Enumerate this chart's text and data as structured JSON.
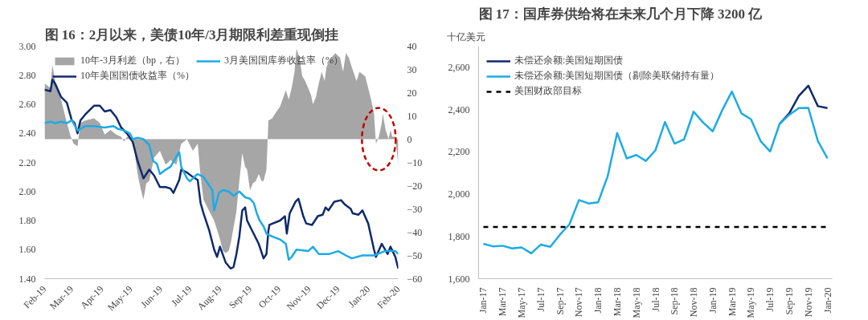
{
  "chart_data": [
    {
      "type": "line",
      "title": "图 16：2月以来，美债10年/3月期限利差重现倒挂",
      "legend": "top left",
      "xlim": [
        "2019-02-01",
        "2020-02-01"
      ],
      "xticks": [
        {
          "value": "2019-02-01",
          "label": "Feb-19"
        },
        {
          "value": "2019-03-01",
          "label": "Mar-19"
        },
        {
          "value": "2019-04-01",
          "label": "Apr-19"
        },
        {
          "value": "2019-05-01",
          "label": "May-19"
        },
        {
          "value": "2019-06-01",
          "label": "Jun-19"
        },
        {
          "value": "2019-07-01",
          "label": "Jul-19"
        },
        {
          "value": "2019-08-01",
          "label": "Aug-19"
        },
        {
          "value": "2019-09-01",
          "label": "Sep-19"
        },
        {
          "value": "2019-10-01",
          "label": "Oct-19"
        },
        {
          "value": "2019-11-01",
          "label": "Nov-19"
        },
        {
          "value": "2019-12-01",
          "label": "Dec-19"
        },
        {
          "value": "2020-01-01",
          "label": "Jan-20"
        },
        {
          "value": "2020-02-01",
          "label": "Feb-20"
        }
      ],
      "ylim": [
        1.4,
        3.0
      ],
      "yticks": [
        {
          "value": 1.4,
          "label": "1.40"
        },
        {
          "value": 1.6,
          "label": "1.60"
        },
        {
          "value": 1.8,
          "label": "1.80"
        },
        {
          "value": 2.0,
          "label": "2.00"
        },
        {
          "value": 2.2,
          "label": "2.20"
        },
        {
          "value": 2.4,
          "label": "2.40"
        },
        {
          "value": 2.6,
          "label": "2.60"
        },
        {
          "value": 2.8,
          "label": "2.80"
        },
        {
          "value": 3.0,
          "label": "3.00"
        }
      ],
      "y2lim": [
        -60,
        40
      ],
      "y2ticks": [
        -60,
        -50,
        -40,
        -30,
        -20,
        -10,
        0,
        10,
        20,
        30,
        40
      ],
      "series": [
        {
          "name": "10年-3月利差（bp，右）",
          "type": "area",
          "axis": "y2",
          "color": "#a6a6a6",
          "x": [
            "2019-02-01",
            "2019-02-07",
            "2019-02-09",
            "2019-02-12",
            "2019-02-18",
            "2019-02-24",
            "2019-02-28",
            "2019-03-03",
            "2019-03-07",
            "2019-03-10",
            "2019-03-15",
            "2019-03-24",
            "2019-03-30",
            "2019-04-04",
            "2019-04-10",
            "2019-04-16",
            "2019-04-21",
            "2019-04-24",
            "2019-04-27",
            "2019-05-03",
            "2019-05-08",
            "2019-05-11",
            "2019-05-14",
            "2019-05-17",
            "2019-05-20",
            "2019-05-25",
            "2019-05-31",
            "2019-06-03",
            "2019-06-06",
            "2019-06-11",
            "2019-06-17",
            "2019-06-22",
            "2019-06-28",
            "2019-07-04",
            "2019-07-09",
            "2019-07-12",
            "2019-07-15",
            "2019-07-21",
            "2019-07-26",
            "2019-08-01",
            "2019-08-04",
            "2019-08-07",
            "2019-08-10",
            "2019-08-12",
            "2019-08-18",
            "2019-08-21",
            "2019-08-24",
            "2019-08-27",
            "2019-08-29",
            "2019-09-01",
            "2019-09-04",
            "2019-09-07",
            "2019-09-10",
            "2019-09-13",
            "2019-09-15",
            "2019-09-18",
            "2019-09-20",
            "2019-09-24",
            "2019-09-27",
            "2019-10-02",
            "2019-10-08",
            "2019-10-11",
            "2019-10-14",
            "2019-10-17",
            "2019-10-19",
            "2019-10-22",
            "2019-10-25",
            "2019-10-28",
            "2019-11-03",
            "2019-11-05",
            "2019-11-08",
            "2019-11-11",
            "2019-11-14",
            "2019-11-17",
            "2019-11-19",
            "2019-11-22",
            "2019-11-28",
            "2019-12-03",
            "2019-12-06",
            "2019-12-09",
            "2019-12-12",
            "2019-12-15",
            "2019-12-20",
            "2019-12-23",
            "2019-12-29",
            "2020-01-01",
            "2020-01-04",
            "2020-01-07",
            "2020-01-09",
            "2020-01-12",
            "2020-01-15",
            "2020-01-16",
            "2020-01-19",
            "2020-01-22",
            "2020-01-24",
            "2020-01-26",
            "2020-01-29",
            "2020-02-01"
          ],
          "values": [
            24,
            22,
            32,
            25,
            17,
            7,
            1,
            -2,
            -3,
            7,
            8,
            9,
            7,
            2,
            4,
            2,
            1,
            -1,
            1,
            0,
            -15,
            -21,
            -26,
            -19,
            -18,
            -8,
            -5,
            -8,
            -11,
            -9,
            -11,
            -2,
            0,
            -5,
            -2,
            -16,
            -26,
            -31,
            -35,
            -43,
            -48,
            -49,
            -48,
            -45,
            -31,
            -18,
            -6,
            -12,
            -13,
            -22,
            -19,
            -18,
            -15,
            -18,
            -18,
            -13,
            8,
            9,
            11,
            14,
            21,
            17,
            22,
            29,
            39,
            35,
            27,
            25,
            19,
            15,
            18,
            24,
            29,
            25,
            31,
            34,
            37,
            35,
            29,
            37,
            35,
            31,
            25,
            29,
            27,
            22,
            17,
            11,
            -2,
            1,
            7,
            11,
            4,
            0,
            4,
            1,
            1,
            -11
          ]
        },
        {
          "name": "10年美国国债收益率（%）",
          "color": "#0f2a6b",
          "x": [
            "2019-02-01",
            "2019-02-07",
            "2019-02-09",
            "2019-02-12",
            "2019-02-18",
            "2019-02-24",
            "2019-03-01",
            "2019-03-04",
            "2019-03-07",
            "2019-03-10",
            "2019-03-15",
            "2019-03-24",
            "2019-03-30",
            "2019-04-04",
            "2019-04-10",
            "2019-04-16",
            "2019-04-21",
            "2019-04-27",
            "2019-05-03",
            "2019-05-08",
            "2019-05-14",
            "2019-05-20",
            "2019-05-25",
            "2019-05-31",
            "2019-06-06",
            "2019-06-11",
            "2019-06-14",
            "2019-06-20",
            "2019-06-22",
            "2019-06-28",
            "2019-07-04",
            "2019-07-09",
            "2019-07-12",
            "2019-07-15",
            "2019-07-21",
            "2019-07-26",
            "2019-07-29",
            "2019-08-01",
            "2019-08-07",
            "2019-08-12",
            "2019-08-15",
            "2019-08-18",
            "2019-08-21",
            "2019-08-24",
            "2019-08-27",
            "2019-08-29",
            "2019-09-04",
            "2019-09-10",
            "2019-09-15",
            "2019-09-18",
            "2019-09-20",
            "2019-09-21",
            "2019-10-02",
            "2019-10-07",
            "2019-10-09",
            "2019-10-12",
            "2019-10-18",
            "2019-10-21",
            "2019-10-26",
            "2019-10-29",
            "2019-11-04",
            "2019-11-10",
            "2019-11-15",
            "2019-11-18",
            "2019-11-21",
            "2019-11-27",
            "2019-12-04",
            "2019-12-08",
            "2019-12-14",
            "2019-12-16",
            "2019-12-22",
            "2019-12-26",
            "2020-01-01",
            "2020-01-04",
            "2020-01-07",
            "2020-01-09",
            "2020-01-15",
            "2020-01-21",
            "2020-01-24",
            "2020-01-29",
            "2020-02-01"
          ],
          "values": [
            2.7,
            2.69,
            2.77,
            2.74,
            2.65,
            2.61,
            2.49,
            2.47,
            2.4,
            2.49,
            2.53,
            2.59,
            2.59,
            2.55,
            2.56,
            2.51,
            2.44,
            2.4,
            2.34,
            2.21,
            2.09,
            2.15,
            2.11,
            2.03,
            2.03,
            2.02,
            1.99,
            2.08,
            2.15,
            2.13,
            2.1,
            2.08,
            1.92,
            1.85,
            1.73,
            1.6,
            1.55,
            1.62,
            1.51,
            1.47,
            1.48,
            1.57,
            1.69,
            1.87,
            1.89,
            1.8,
            1.72,
            1.64,
            1.54,
            1.57,
            1.73,
            1.77,
            1.8,
            1.83,
            1.71,
            1.85,
            1.93,
            1.95,
            1.83,
            1.78,
            1.77,
            1.83,
            1.84,
            1.89,
            1.87,
            1.93,
            1.94,
            1.91,
            1.88,
            1.85,
            1.84,
            1.87,
            1.78,
            1.69,
            1.6,
            1.55,
            1.64,
            1.57,
            1.62,
            1.55,
            1.47
          ]
        },
        {
          "name": "3月美国国库券收益率（%）",
          "color": "#1cabe6",
          "x": [
            "2019-02-01",
            "2019-02-07",
            "2019-02-12",
            "2019-02-18",
            "2019-02-24",
            "2019-03-01",
            "2019-03-07",
            "2019-03-15",
            "2019-03-24",
            "2019-04-04",
            "2019-04-13",
            "2019-04-18",
            "2019-04-24",
            "2019-04-30",
            "2019-05-03",
            "2019-05-08",
            "2019-05-14",
            "2019-05-20",
            "2019-05-24",
            "2019-05-28",
            "2019-05-31",
            "2019-06-06",
            "2019-06-11",
            "2019-06-17",
            "2019-06-20",
            "2019-06-22",
            "2019-06-28",
            "2019-07-01",
            "2019-07-07",
            "2019-07-09",
            "2019-07-15",
            "2019-07-21",
            "2019-07-24",
            "2019-07-26",
            "2019-07-31",
            "2019-08-04",
            "2019-08-10",
            "2019-08-15",
            "2019-08-21",
            "2019-08-27",
            "2019-09-01",
            "2019-09-05",
            "2019-09-08",
            "2019-09-11",
            "2019-09-15",
            "2019-09-18",
            "2019-09-24",
            "2019-10-02",
            "2019-10-08",
            "2019-10-11",
            "2019-10-14",
            "2019-10-19",
            "2019-10-31",
            "2019-11-05",
            "2019-11-11",
            "2019-11-22",
            "2019-12-01",
            "2019-12-09",
            "2019-12-15",
            "2019-12-26",
            "2020-01-07",
            "2020-01-18",
            "2020-01-29",
            "2020-02-01"
          ],
          "values": [
            2.47,
            2.48,
            2.47,
            2.48,
            2.47,
            2.49,
            2.42,
            2.45,
            2.45,
            2.44,
            2.45,
            2.43,
            2.42,
            2.4,
            2.36,
            2.37,
            2.36,
            2.32,
            2.21,
            2.19,
            2.12,
            2.15,
            2.17,
            2.24,
            2.27,
            2.17,
            2.09,
            2.07,
            2.11,
            2.12,
            2.1,
            2.04,
            2.01,
            1.87,
            1.99,
            2.01,
            2.0,
            1.97,
            2.0,
            1.96,
            1.95,
            1.92,
            1.85,
            1.8,
            1.76,
            1.71,
            1.69,
            1.67,
            1.64,
            1.53,
            1.55,
            1.6,
            1.59,
            1.62,
            1.57,
            1.57,
            1.59,
            1.56,
            1.54,
            1.56,
            1.56,
            1.59,
            1.59,
            1.57
          ]
        }
      ]
    },
    {
      "type": "line",
      "title": "图 17：国库券供给将在未来几个月下降 3200 亿",
      "ylabel": "十亿美元",
      "legend": "top left",
      "categories": [
        "Jan-17",
        null,
        "Mar-17",
        null,
        "May-17",
        null,
        "Jul-17",
        null,
        "Sep-17",
        null,
        "Nov-17",
        null,
        "Jan-18",
        null,
        "Mar-18",
        null,
        "May-18",
        null,
        "Jul-18",
        null,
        "Sep-18",
        null,
        "Nov-18",
        null,
        "Jan-19",
        null,
        "Mar-19",
        null,
        "May-19",
        null,
        "Jul-19",
        null,
        "Sep-19",
        null,
        "Nov-19",
        null,
        "Jan-20"
      ],
      "ylim": [
        1600,
        2700
      ],
      "yticks": [
        {
          "value": 1600,
          "label": "1,600"
        },
        {
          "value": 1800,
          "label": "1,800"
        },
        {
          "value": 2000,
          "label": "2,000"
        },
        {
          "value": 2200,
          "label": "2,200"
        },
        {
          "value": 2400,
          "label": "2,400"
        },
        {
          "value": 2600,
          "label": "2,600"
        }
      ],
      "series": [
        {
          "name": "未偿还余额:美国短期国债",
          "color": "#0f2a6b",
          "values": [
            null,
            null,
            null,
            null,
            null,
            null,
            null,
            null,
            null,
            null,
            null,
            null,
            null,
            null,
            null,
            null,
            null,
            null,
            null,
            null,
            null,
            null,
            null,
            null,
            null,
            null,
            null,
            null,
            null,
            null,
            null,
            2333,
            2382,
            2464,
            2513,
            2416,
            2407
          ]
        },
        {
          "name": "未偿还余额:美国短期国债（剔除美联储持有量）",
          "color": "#1cabe6",
          "values": [
            1765,
            1753,
            1756,
            1743,
            1748,
            1720,
            1761,
            1751,
            1808,
            1857,
            1972,
            1956,
            1961,
            2084,
            2289,
            2169,
            2185,
            2157,
            2207,
            2341,
            2239,
            2259,
            2390,
            2338,
            2297,
            2398,
            2485,
            2382,
            2354,
            2251,
            2202,
            2333,
            2375,
            2407,
            2408,
            2251,
            2169
          ]
        },
        {
          "name": "美国财政部目标",
          "color": "#000000",
          "line_style": "dashed",
          "values": [
            1845,
            1845,
            1845,
            1845,
            1845,
            1845,
            1845,
            1845,
            1845,
            1845,
            1845,
            1845,
            1845,
            1845,
            1845,
            1845,
            1845,
            1845,
            1845,
            1845,
            1845,
            1845,
            1845,
            1845,
            1845,
            1845,
            1845,
            1845,
            1845,
            1845,
            1845,
            1845,
            1845,
            1845,
            1845,
            1845,
            1845
          ]
        }
      ]
    }
  ]
}
